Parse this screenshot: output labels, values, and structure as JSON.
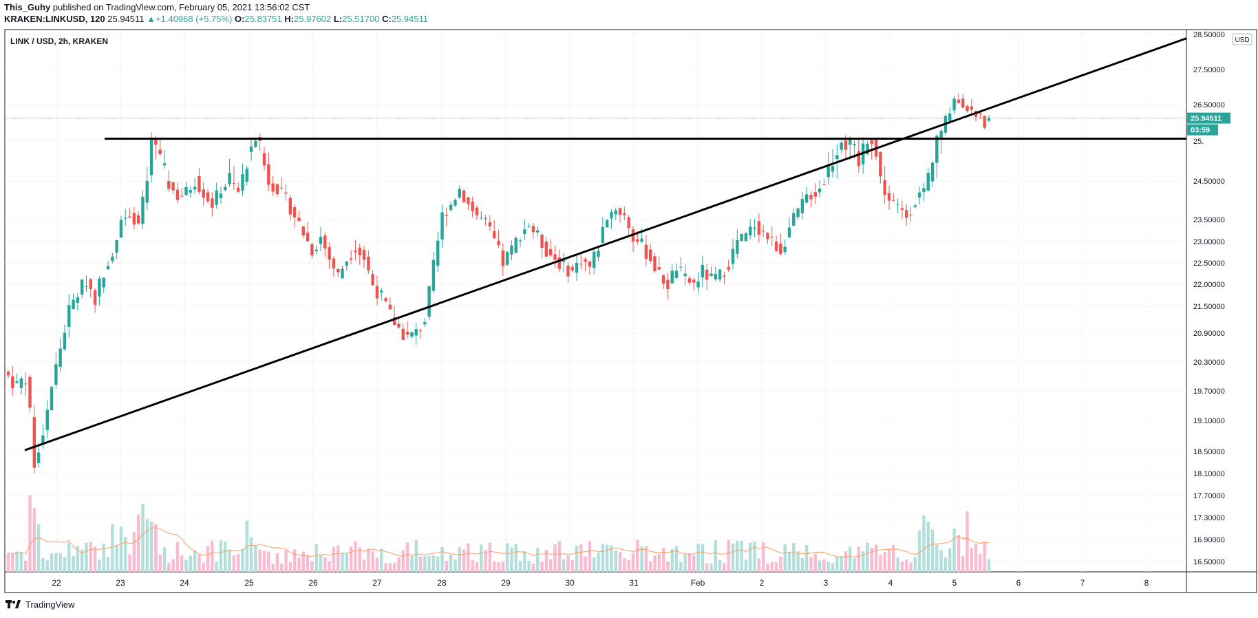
{
  "header": {
    "publisher": "This_Guhy",
    "published_text": "published on TradingView.com, February 05, 2021 13:56:02 CST",
    "symbol": "KRAKEN:LINKUSD, 120",
    "last": "25.94511",
    "change": "+1.40968 (+5.75%)",
    "o_label": "O:",
    "o_value": "25.83751",
    "h_label": "H:",
    "h_value": "25.97602",
    "l_label": "L:",
    "l_value": "25.51700",
    "c_label": "C:",
    "c_value": "25.94511"
  },
  "footer": {
    "brand": "TradingView"
  },
  "colors": {
    "up": "#26a69a",
    "down": "#ef5350",
    "up_vol": "#b2dfdb",
    "down_vol": "#f8bbd0",
    "ma": "#ff9c5a",
    "trendline": "#000000"
  },
  "chart_data": {
    "type": "candlestick",
    "title": "LINK / USD, 2h, KRAKEN",
    "currency_label": "USD",
    "price_labels": [
      "28.50000",
      "27.50000",
      "26.50000",
      "25.",
      "24.50000",
      "23.50000",
      "23.00000",
      "22.50000",
      "22.00000",
      "21.50000",
      "20.90000",
      "20.30000",
      "19.70000",
      "19.10000",
      "18.50000",
      "18.10000",
      "17.70000",
      "17.30000",
      "16.90000",
      "16.50000"
    ],
    "x_labels": [
      "22",
      "23",
      "24",
      "25",
      "26",
      "27",
      "28",
      "29",
      "30",
      "31",
      "Feb",
      "2",
      "3",
      "4",
      "5",
      "6",
      "7",
      "8"
    ],
    "last_price_tag": "25.94511",
    "countdown_tag": "03:59",
    "anchors": [
      [
        0,
        20.0
      ],
      [
        2,
        19.8
      ],
      [
        4,
        20.0
      ],
      [
        5,
        19.2
      ],
      [
        6,
        18.3
      ],
      [
        8,
        18.9
      ],
      [
        10,
        19.8
      ],
      [
        12,
        20.6
      ],
      [
        14,
        21.4
      ],
      [
        16,
        21.8
      ],
      [
        18,
        22.1
      ],
      [
        20,
        21.7
      ],
      [
        22,
        22.3
      ],
      [
        24,
        22.8
      ],
      [
        26,
        23.5
      ],
      [
        28,
        23.7
      ],
      [
        30,
        23.4
      ],
      [
        32,
        24.5
      ],
      [
        33,
        25.1
      ],
      [
        35,
        24.7
      ],
      [
        37,
        24.4
      ],
      [
        39,
        24.1
      ],
      [
        41,
        24.2
      ],
      [
        43,
        24.5
      ],
      [
        45,
        24.2
      ],
      [
        47,
        23.9
      ],
      [
        49,
        24.3
      ],
      [
        51,
        24.5
      ],
      [
        53,
        24.2
      ],
      [
        55,
        24.8
      ],
      [
        57,
        25.1
      ],
      [
        58,
        24.9
      ],
      [
        60,
        24.5
      ],
      [
        62,
        24.3
      ],
      [
        64,
        24.0
      ],
      [
        66,
        23.6
      ],
      [
        68,
        23.2
      ],
      [
        70,
        22.8
      ],
      [
        72,
        23.1
      ],
      [
        74,
        22.6
      ],
      [
        76,
        22.2
      ],
      [
        78,
        22.6
      ],
      [
        80,
        22.9
      ],
      [
        82,
        22.6
      ],
      [
        84,
        22.0
      ],
      [
        86,
        21.7
      ],
      [
        88,
        21.3
      ],
      [
        90,
        21.0
      ],
      [
        92,
        20.8
      ],
      [
        94,
        20.9
      ],
      [
        96,
        21.2
      ],
      [
        98,
        22.4
      ],
      [
        100,
        23.6
      ],
      [
        102,
        23.9
      ],
      [
        104,
        24.3
      ],
      [
        106,
        23.9
      ],
      [
        108,
        23.6
      ],
      [
        110,
        23.4
      ],
      [
        112,
        23.0
      ],
      [
        114,
        22.5
      ],
      [
        116,
        22.8
      ],
      [
        118,
        23.2
      ],
      [
        120,
        23.4
      ],
      [
        122,
        23.1
      ],
      [
        124,
        22.8
      ],
      [
        126,
        22.6
      ],
      [
        128,
        22.4
      ],
      [
        130,
        22.3
      ],
      [
        132,
        22.6
      ],
      [
        134,
        22.4
      ],
      [
        136,
        22.9
      ],
      [
        138,
        23.6
      ],
      [
        140,
        23.8
      ],
      [
        142,
        23.6
      ],
      [
        144,
        23.1
      ],
      [
        146,
        22.9
      ],
      [
        148,
        22.6
      ],
      [
        150,
        22.2
      ],
      [
        152,
        22.0
      ],
      [
        154,
        22.4
      ],
      [
        156,
        22.1
      ],
      [
        158,
        22.0
      ],
      [
        160,
        22.3
      ],
      [
        162,
        22.1
      ],
      [
        164,
        22.2
      ],
      [
        166,
        22.5
      ],
      [
        168,
        23.0
      ],
      [
        170,
        23.1
      ],
      [
        172,
        23.4
      ],
      [
        174,
        23.2
      ],
      [
        176,
        23.0
      ],
      [
        178,
        22.8
      ],
      [
        180,
        23.3
      ],
      [
        182,
        23.7
      ],
      [
        184,
        24.1
      ],
      [
        186,
        24.2
      ],
      [
        188,
        24.5
      ],
      [
        190,
        24.8
      ],
      [
        192,
        25.1
      ],
      [
        194,
        24.9
      ],
      [
        196,
        24.7
      ],
      [
        198,
        25.1
      ],
      [
        199,
        25.1
      ],
      [
        201,
        24.5
      ],
      [
        203,
        24.0
      ],
      [
        205,
        23.8
      ],
      [
        207,
        23.6
      ],
      [
        209,
        24.0
      ],
      [
        211,
        24.3
      ],
      [
        213,
        24.8
      ],
      [
        215,
        25.4
      ],
      [
        216,
        25.9
      ],
      [
        218,
        26.7
      ],
      [
        220,
        26.5
      ],
      [
        222,
        26.2
      ],
      [
        224,
        26.0
      ],
      [
        225,
        25.7
      ],
      [
        226,
        25.95
      ]
    ],
    "volume_style": "pseudo-random per bar, spikes around Jan 21 and Jan 23",
    "horizontal_line_price": 25.1,
    "rising_trendline": [
      [
        3,
        18.5
      ],
      [
        184,
        24.6
      ]
    ]
  }
}
